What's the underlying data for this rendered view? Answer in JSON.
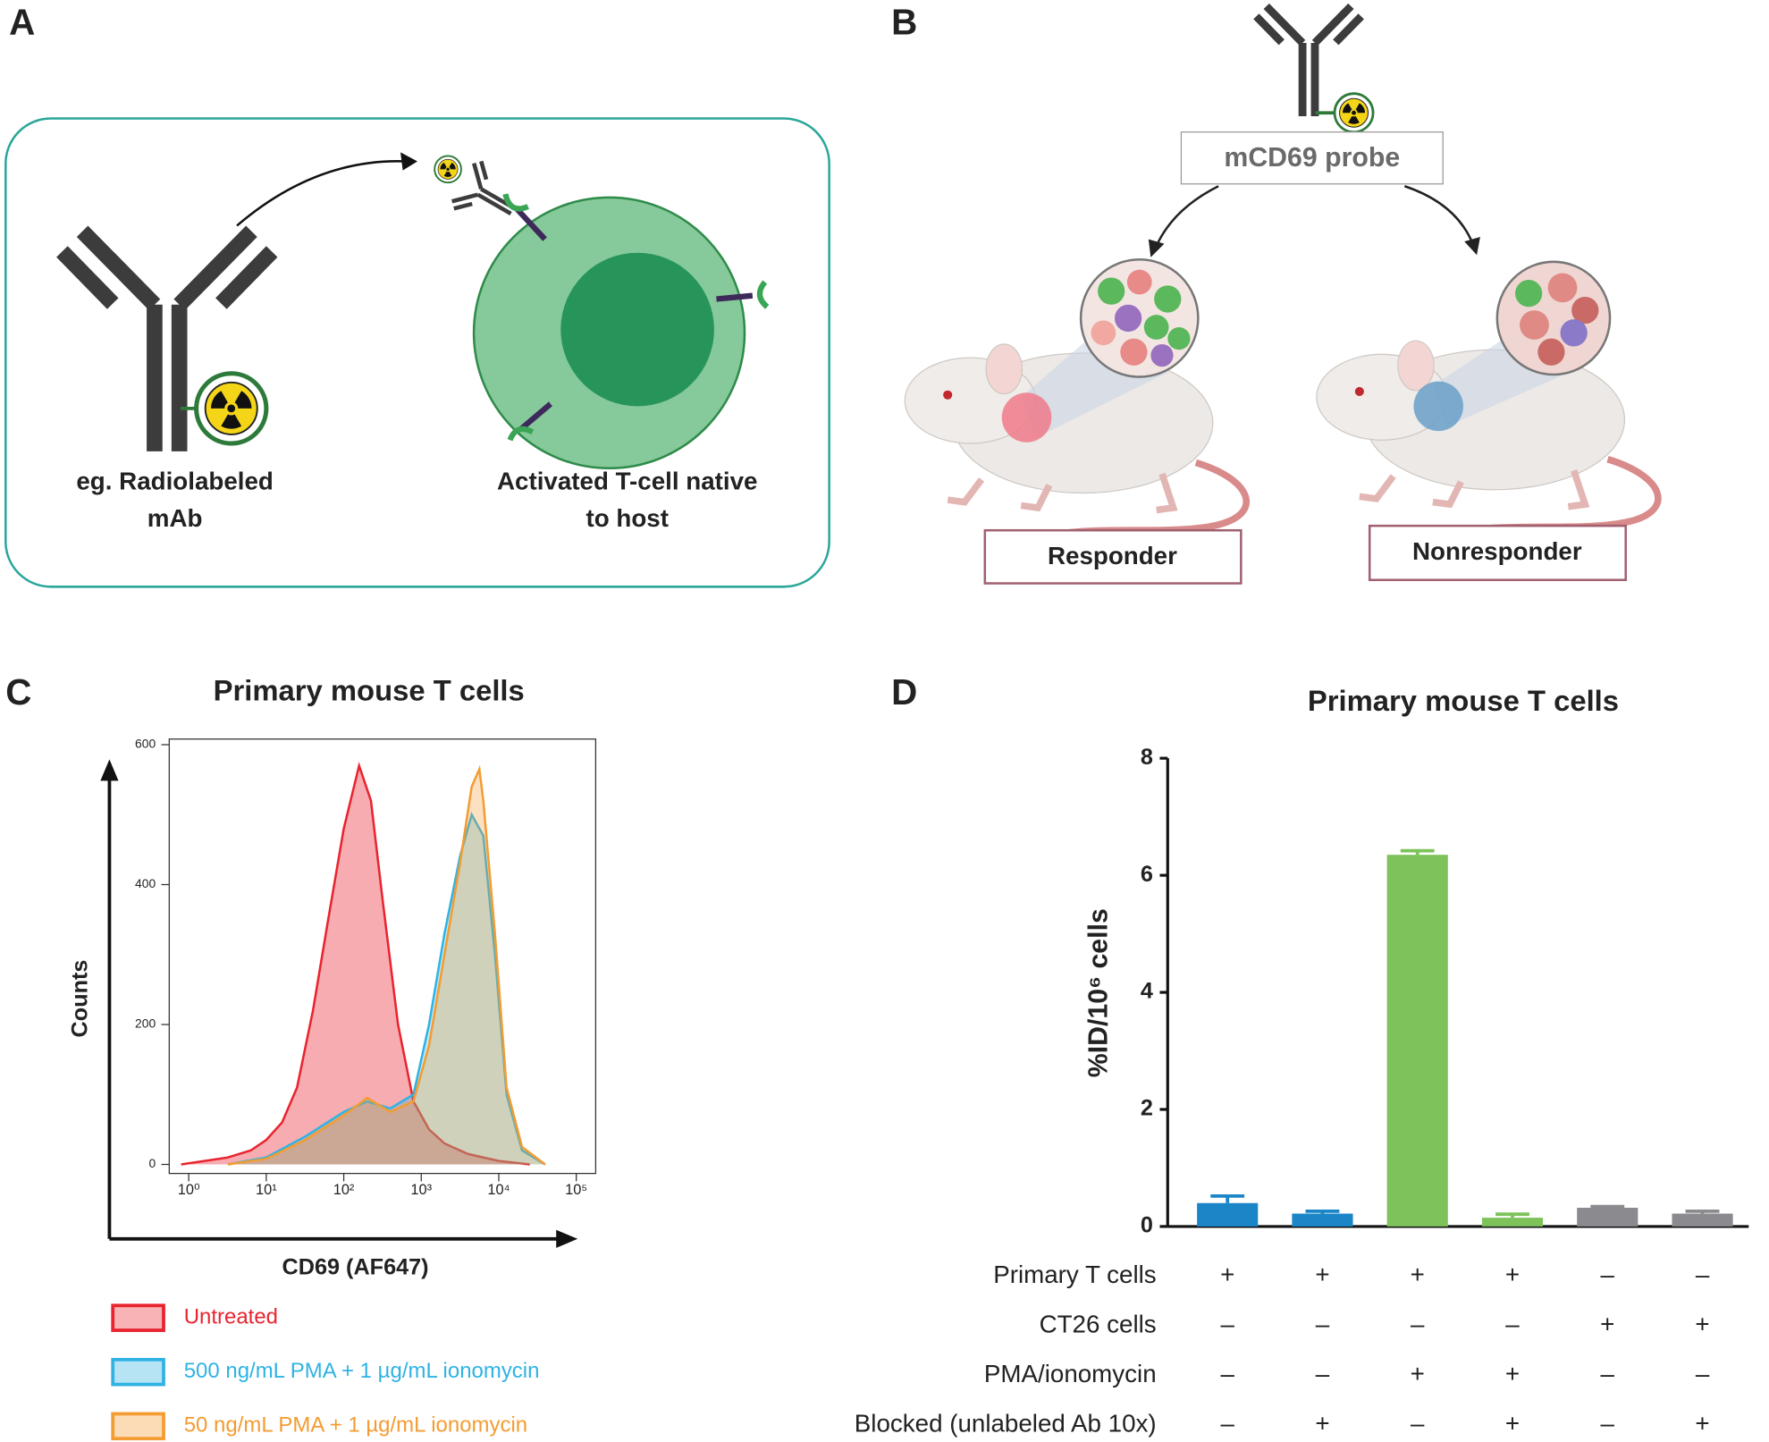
{
  "panel_a": {
    "letter": "A",
    "antibody_label": [
      "eg. Radiolabeled",
      "mAb"
    ],
    "cell_label": [
      "Activated T-cell native",
      "to host"
    ]
  },
  "panel_b": {
    "letter": "B",
    "probe_label": "mCD69 probe",
    "responder_label": "Responder",
    "nonresponder_label": "Nonresponder"
  },
  "chart_data": [
    {
      "panel_letter": "C",
      "type": "area",
      "title": "Primary mouse T cells",
      "xlabel": "CD69 (AF647)",
      "ylabel": "Counts",
      "xscale": "log",
      "xlim": [
        0.56,
        178000
      ],
      "xticks": [
        {
          "value": 1,
          "label": "10⁰"
        },
        {
          "value": 10,
          "label": "10¹"
        },
        {
          "value": 100,
          "label": "10²"
        },
        {
          "value": 1000,
          "label": "10³"
        },
        {
          "value": 10000,
          "label": "10⁴"
        },
        {
          "value": 100000,
          "label": "10⁵"
        }
      ],
      "ylim": [
        0,
        600
      ],
      "yticks": [
        0,
        200,
        400,
        600
      ],
      "legend_position": "bottom",
      "series": [
        {
          "name": "Untreated",
          "color": "#e8242f",
          "x": [
            0.8,
            1.6,
            3.2,
            6.3,
            10,
            16,
            25,
            40,
            63,
            100,
            158,
            224,
            316,
            501,
            794,
            1259,
            1995,
            3981,
            10000,
            25119
          ],
          "values": [
            0,
            5,
            10,
            20,
            35,
            60,
            110,
            220,
            350,
            480,
            570,
            520,
            380,
            200,
            90,
            50,
            30,
            15,
            5,
            0
          ]
        },
        {
          "name": "500 ng/mL PMA + 1 µg/mL ionomycin",
          "color": "#2fb3e3",
          "x": [
            3.2,
            10,
            32,
            100,
            200,
            398,
            794,
            1259,
            1995,
            3162,
            4467,
            6310,
            8913,
            12589,
            19953,
            39811
          ],
          "values": [
            0,
            10,
            40,
            75,
            90,
            80,
            100,
            200,
            330,
            440,
            500,
            470,
            300,
            100,
            20,
            0
          ]
        },
        {
          "name": "50 ng/mL PMA + 1 µg/mL ionomycin",
          "color": "#f39c32",
          "x": [
            3.2,
            10,
            32,
            100,
            200,
            398,
            794,
            1259,
            1995,
            3162,
            4467,
            5623,
            6310,
            8913,
            12589,
            19953,
            39811
          ],
          "values": [
            0,
            8,
            35,
            70,
            95,
            75,
            90,
            170,
            300,
            430,
            540,
            565,
            520,
            330,
            110,
            25,
            0
          ]
        }
      ]
    },
    {
      "panel_letter": "D",
      "type": "bar",
      "title": "Primary mouse T cells",
      "ylabel": "%ID/10⁶ cells",
      "ylim": [
        0,
        8
      ],
      "yticks": [
        0,
        2,
        4,
        6,
        8
      ],
      "values": [
        0.4,
        0.22,
        6.35,
        0.15,
        0.32,
        0.22
      ],
      "errors": [
        0.12,
        0.04,
        0.07,
        0.06,
        0.02,
        0.04
      ],
      "colors": [
        "#1a86c8",
        "#1a86c8",
        "#7dc35a",
        "#7dc35a",
        "#8a8a8f",
        "#8a8a8f"
      ],
      "conditions": [
        {
          "label": "Primary T cells",
          "values": [
            "+",
            "+",
            "+",
            "+",
            "–",
            "–"
          ]
        },
        {
          "label": "CT26 cells",
          "values": [
            "–",
            "–",
            "–",
            "–",
            "+",
            "+"
          ]
        },
        {
          "label": "PMA/ionomycin",
          "values": [
            "–",
            "–",
            "+",
            "+",
            "–",
            "–"
          ]
        },
        {
          "label": "Blocked (unlabeled Ab 10x)",
          "values": [
            "–",
            "+",
            "–",
            "+",
            "–",
            "+"
          ]
        }
      ]
    }
  ]
}
